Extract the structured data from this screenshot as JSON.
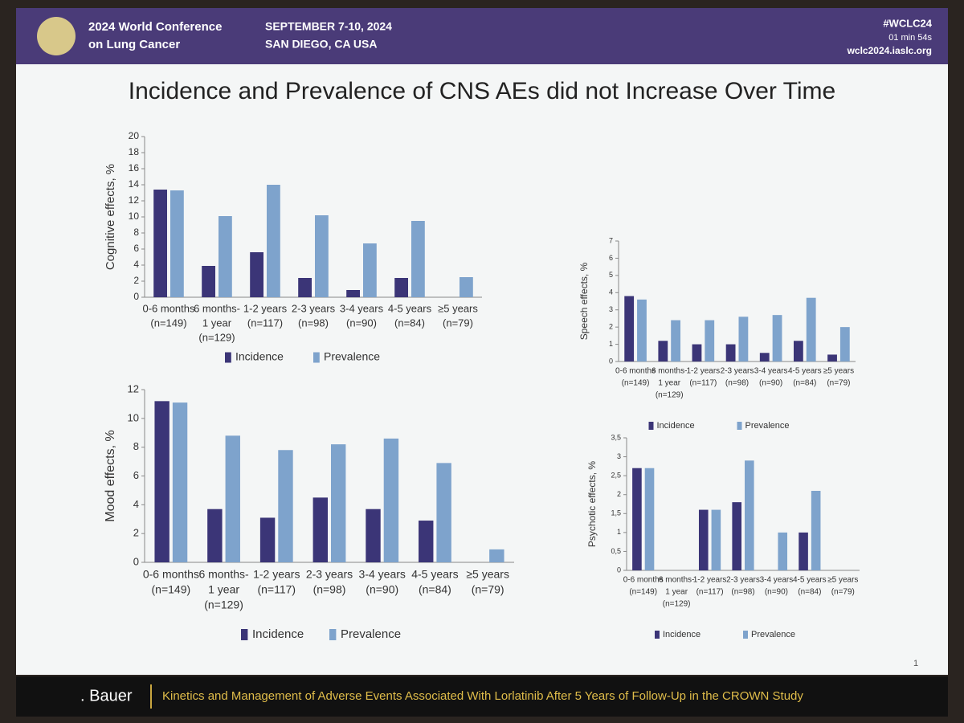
{
  "slide": {
    "conference": [
      "2024 World Conference",
      "on Lung Cancer"
    ],
    "dates": "SEPTEMBER 7-10, 2024",
    "place": "SAN DIEGO, CA USA",
    "hashtag": "#WCLC24",
    "timer": "01 min 54s",
    "site": "wclc2024.iaslc.org",
    "title": "Incidence and Prevalence of CNS AEs did not Increase Over Time",
    "presenter": ". Bauer",
    "footer": "Kinetics and Management of Adverse Events Associated With Lorlatinib After 5 Years of Follow-Up in the CROWN Study",
    "page": "1"
  },
  "chart_data": [
    {
      "type": "bar",
      "ylabel": "Cognitive effects, %",
      "categories": [
        [
          "0-6 months",
          "(n=149)"
        ],
        [
          "6 months-",
          "1 year",
          "(n=129)"
        ],
        [
          "1-2 years",
          "(n=117)"
        ],
        [
          "2-3 years",
          "(n=98)"
        ],
        [
          "3-4 years",
          "(n=90)"
        ],
        [
          "4-5 years",
          "(n=84)"
        ],
        [
          "≥5 years",
          "(n=79)"
        ]
      ],
      "series": [
        {
          "name": "Incidence",
          "color": "#3b3577",
          "values": [
            13.4,
            3.9,
            5.6,
            2.4,
            0.9,
            2.4,
            0
          ]
        },
        {
          "name": "Prevalence",
          "color": "#7ea3cc",
          "values": [
            13.3,
            10.1,
            14.0,
            10.2,
            6.7,
            9.5,
            2.5
          ]
        }
      ],
      "ylim": [
        0,
        20
      ],
      "yticks": [
        0,
        2,
        4,
        6,
        8,
        10,
        12,
        14,
        16,
        18,
        20
      ]
    },
    {
      "type": "bar",
      "ylabel": "Speech effects, %",
      "categories": [
        [
          "0-6 months",
          "(n=149)"
        ],
        [
          "6 months-",
          "1 year",
          "(n=129)"
        ],
        [
          "1-2 years",
          "(n=117)"
        ],
        [
          "2-3 years",
          "(n=98)"
        ],
        [
          "3-4 years",
          "(n=90)"
        ],
        [
          "4-5 years",
          "(n=84)"
        ],
        [
          "≥5 years",
          "(n=79)"
        ]
      ],
      "series": [
        {
          "name": "Incidence",
          "color": "#3b3577",
          "values": [
            3.8,
            1.2,
            1.0,
            1.0,
            0.5,
            1.2,
            0.4
          ]
        },
        {
          "name": "Prevalence",
          "color": "#7ea3cc",
          "values": [
            3.6,
            2.4,
            2.4,
            2.6,
            2.7,
            3.7,
            2.0
          ]
        }
      ],
      "ylim": [
        0,
        7
      ],
      "yticks": [
        0,
        1,
        2,
        3,
        4,
        5,
        6,
        7
      ]
    },
    {
      "type": "bar",
      "ylabel": "Mood effects, %",
      "categories": [
        [
          "0-6 months",
          "(n=149)"
        ],
        [
          "6 months-",
          "1 year",
          "(n=129)"
        ],
        [
          "1-2 years",
          "(n=117)"
        ],
        [
          "2-3 years",
          "(n=98)"
        ],
        [
          "3-4 years",
          "(n=90)"
        ],
        [
          "4-5 years",
          "(n=84)"
        ],
        [
          "≥5 years",
          "(n=79)"
        ]
      ],
      "series": [
        {
          "name": "Incidence",
          "color": "#3b3577",
          "values": [
            11.2,
            3.7,
            3.1,
            4.5,
            3.7,
            2.9,
            0
          ]
        },
        {
          "name": "Prevalence",
          "color": "#7ea3cc",
          "values": [
            11.1,
            8.8,
            7.8,
            8.2,
            8.6,
            6.9,
            0.9
          ]
        }
      ],
      "ylim": [
        0,
        12
      ],
      "yticks": [
        0,
        2,
        4,
        6,
        8,
        10,
        12
      ]
    },
    {
      "type": "bar",
      "ylabel": "Psychotic effects, %",
      "categories": [
        [
          "0-6 months",
          "(n=149)"
        ],
        [
          "6 months-",
          "1 year",
          "(n=129)"
        ],
        [
          "1-2 years",
          "(n=117)"
        ],
        [
          "2-3 years",
          "(n=98)"
        ],
        [
          "3-4 years",
          "(n=90)"
        ],
        [
          "4-5 years",
          "(n=84)"
        ],
        [
          "≥5 years",
          "(n=79)"
        ]
      ],
      "series": [
        {
          "name": "Incidence",
          "color": "#3b3577",
          "values": [
            2.7,
            0,
            1.6,
            1.8,
            0,
            1.0,
            0
          ]
        },
        {
          "name": "Prevalence",
          "color": "#7ea3cc",
          "values": [
            2.7,
            0,
            1.6,
            2.9,
            1.0,
            2.1,
            0
          ]
        }
      ],
      "ylim": [
        0,
        3.5
      ],
      "yticks": [
        0,
        {
          "value": 0.5,
          "label": "0,5"
        },
        1,
        {
          "value": 1.5,
          "label": "1,5"
        },
        2,
        {
          "value": 2.5,
          "label": "2,5"
        },
        3,
        {
          "value": 3.5,
          "label": "3,5"
        }
      ]
    }
  ]
}
